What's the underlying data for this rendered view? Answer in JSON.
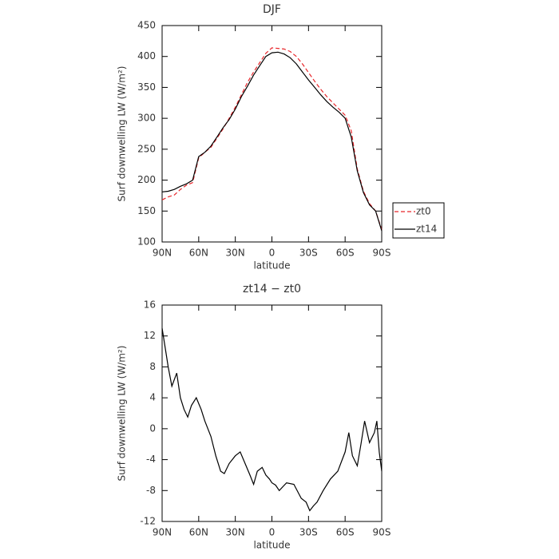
{
  "chart_data": [
    {
      "type": "line",
      "title": "DJF",
      "xlabel": "latitude",
      "ylabel": "Surf downwelling LW (W/m²)",
      "x": [
        90,
        85,
        80,
        75,
        70,
        65,
        60,
        55,
        50,
        45,
        40,
        35,
        30,
        25,
        20,
        15,
        10,
        5,
        0,
        -5,
        -10,
        -15,
        -20,
        -25,
        -30,
        -35,
        -40,
        -45,
        -50,
        -55,
        -60,
        -65,
        -70,
        -75,
        -80,
        -85,
        -90
      ],
      "series": [
        {
          "name": "zt0",
          "color": "#e8262a",
          "style": "dashed",
          "values": [
            168,
            173,
            176,
            185,
            192,
            196,
            236,
            245,
            253,
            268,
            283,
            300,
            318,
            338,
            358,
            375,
            390,
            405,
            414,
            413,
            412,
            408,
            400,
            388,
            374,
            360,
            347,
            335,
            325,
            315,
            305,
            280,
            218,
            182,
            162,
            150,
            120
          ]
        },
        {
          "name": "zt14",
          "color": "#000000",
          "style": "solid",
          "values": [
            181,
            182,
            185,
            190,
            194,
            200,
            238,
            245,
            255,
            270,
            285,
            298,
            315,
            335,
            352,
            370,
            385,
            400,
            406,
            407,
            404,
            398,
            388,
            375,
            362,
            350,
            338,
            327,
            318,
            310,
            300,
            270,
            215,
            180,
            160,
            150,
            118
          ]
        }
      ],
      "xlim": [
        90,
        -90
      ],
      "xticks": [
        {
          "value": 90,
          "label": "90N"
        },
        {
          "value": 60,
          "label": "60N"
        },
        {
          "value": 30,
          "label": "30N"
        },
        0,
        {
          "value": -30,
          "label": "30S"
        },
        {
          "value": -60,
          "label": "60S"
        },
        {
          "value": -90,
          "label": "90S"
        }
      ],
      "ylim": [
        100,
        450
      ],
      "yticks": [
        100,
        150,
        200,
        250,
        300,
        350,
        400,
        450
      ],
      "legend": "right"
    },
    {
      "type": "line",
      "title": "zt14 − zt0",
      "xlabel": "latitude",
      "ylabel": "Surf downwelling LW (W/m²)",
      "x": [
        90,
        87,
        85,
        82,
        78,
        75,
        72,
        69,
        66,
        62,
        58,
        55,
        50,
        46,
        42,
        39,
        35,
        30,
        26,
        22,
        18,
        15,
        12,
        8,
        5,
        2,
        0,
        -3,
        -6,
        -9,
        -12,
        -18,
        -24,
        -28,
        -31,
        -34,
        -37,
        -42,
        -48,
        -54,
        -60,
        -63,
        -66,
        -70,
        -73,
        -76,
        -80,
        -84,
        -86,
        -88,
        -90
      ],
      "color": "#000000",
      "values": [
        13,
        10,
        8,
        5.5,
        7.2,
        4,
        2.5,
        1.5,
        3,
        4,
        2.5,
        1,
        -1,
        -3.5,
        -5.5,
        -5.8,
        -4.5,
        -3.5,
        -3,
        -4.5,
        -6,
        -7.2,
        -5.5,
        -5,
        -6,
        -6.5,
        -7,
        -7.3,
        -8,
        -7.5,
        -7,
        -7.2,
        -9,
        -9.5,
        -10.6,
        -10,
        -9.5,
        -8,
        -6.5,
        -5.5,
        -3,
        -0.5,
        -3.5,
        -4.8,
        -2,
        1,
        -1.8,
        -0.5,
        1,
        -3,
        -5.5
      ],
      "xlim": [
        90,
        -90
      ],
      "xticks": [
        {
          "value": 90,
          "label": "90N"
        },
        {
          "value": 60,
          "label": "60N"
        },
        {
          "value": 30,
          "label": "30N"
        },
        0,
        {
          "value": -30,
          "label": "30S"
        },
        {
          "value": -60,
          "label": "60S"
        },
        {
          "value": -90,
          "label": "90S"
        }
      ],
      "ylim": [
        -12,
        16
      ],
      "yticks": [
        -12,
        -8,
        -4,
        0,
        4,
        8,
        12,
        16
      ]
    }
  ]
}
